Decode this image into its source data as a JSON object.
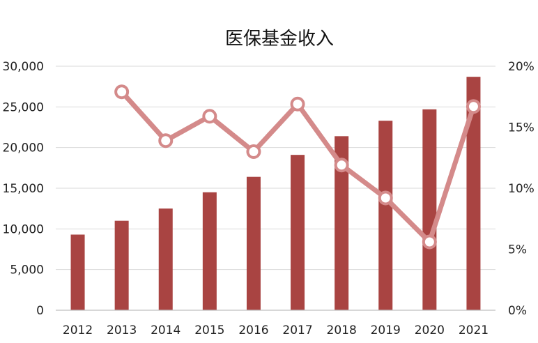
{
  "chart_data": {
    "type": "bar",
    "title": "医保基金收入",
    "categories": [
      "2012",
      "2013",
      "2014",
      "2015",
      "2016",
      "2017",
      "2018",
      "2019",
      "2020",
      "2021"
    ],
    "series": [
      {
        "type": "bar",
        "axis": "left",
        "color": "#A94442",
        "values": [
          9300,
          11000,
          12500,
          14500,
          16400,
          19100,
          21400,
          23300,
          24700,
          28700
        ]
      },
      {
        "type": "line",
        "axis": "right",
        "color": "#D48A8A",
        "values": [
          null,
          17.9,
          13.9,
          15.9,
          13.0,
          16.9,
          11.9,
          9.2,
          5.6,
          16.7
        ]
      }
    ],
    "y_left": {
      "min": 0,
      "max": 30000,
      "ticks": [
        0,
        5000,
        10000,
        15000,
        20000,
        25000,
        30000
      ],
      "tick_labels": [
        "0",
        "5,000",
        "10,000",
        "15,000",
        "20,000",
        "25,000",
        "30,000"
      ]
    },
    "y_right": {
      "min": 0,
      "max": 20,
      "ticks": [
        0,
        5,
        10,
        15,
        20
      ],
      "tick_labels": [
        "0%",
        "5%",
        "10%",
        "15%",
        "20%"
      ]
    },
    "grid": true,
    "legend": "none"
  }
}
